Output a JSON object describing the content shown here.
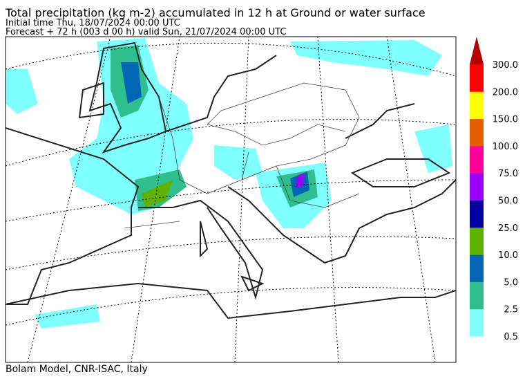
{
  "header": {
    "title": "Total precipitation (kg m-2) accumulated in  12 h at Ground or water surface",
    "initial_time": "Initial time  Thu, 18/07/2024  00:00 UTC",
    "forecast": "Forecast  +  72 h  (003 d 00 h)  valid Sun, 21/07/2024 00:00 UTC"
  },
  "colorbar": {
    "labels": [
      "0.5",
      "2.5",
      "5.0",
      "10.0",
      "25.0",
      "50.0",
      "75.0",
      "100.0",
      "150.0",
      "200.0",
      "300.0"
    ],
    "colors": [
      "#7fffff",
      "#2fbf8f",
      "#0066b3",
      "#5fb300",
      "#0000a0",
      "#9900ff",
      "#ff0099",
      "#e65c00",
      "#ffff00",
      "#ff0000"
    ],
    "extend_color": "#b30000"
  },
  "footer": {
    "credit": "Bolam Model, CNR-ISAC, Italy"
  }
}
